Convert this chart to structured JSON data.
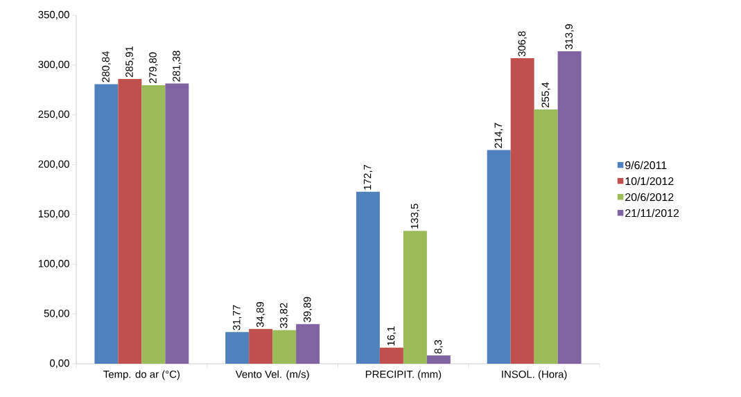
{
  "chart_data": {
    "type": "bar",
    "categories": [
      "Temp. do ar (°C)",
      "Vento Vel. (m/s)",
      "PRECIPIT. (mm)",
      "INSOL. (Hora)"
    ],
    "series": [
      {
        "name": "9/6/2011",
        "color": "#4f81bd",
        "values": [
          280.84,
          31.77,
          172.7,
          214.7
        ],
        "value_labels": [
          "280,84",
          "31,77",
          "172,7",
          "214,7"
        ]
      },
      {
        "name": "10/1/2012",
        "color": "#c0504d",
        "values": [
          285.91,
          34.89,
          16.1,
          306.8
        ],
        "value_labels": [
          "285,91",
          "34,89",
          "16,1",
          "306,8"
        ]
      },
      {
        "name": "20/6/2012",
        "color": "#9bbb59",
        "values": [
          279.8,
          33.82,
          133.5,
          255.4
        ],
        "value_labels": [
          "279,80",
          "33,82",
          "133,5",
          "255,4"
        ]
      },
      {
        "name": "21/11/2012",
        "color": "#8064a2",
        "values": [
          281.38,
          39.89,
          8.3,
          313.9
        ],
        "value_labels": [
          "281,38",
          "39,89",
          "8,3",
          "313,9"
        ]
      }
    ],
    "ylim": [
      0,
      350
    ],
    "yticks": [
      {
        "value": 0,
        "label": "0,00"
      },
      {
        "value": 50,
        "label": "50,00"
      },
      {
        "value": 100,
        "label": "100,00"
      },
      {
        "value": 150,
        "label": "150,00"
      },
      {
        "value": 200,
        "label": "200,00"
      },
      {
        "value": 250,
        "label": "250,00"
      },
      {
        "value": 300,
        "label": "300,00"
      },
      {
        "value": 350,
        "label": "350,00"
      }
    ],
    "grid": false,
    "legend": "right"
  }
}
